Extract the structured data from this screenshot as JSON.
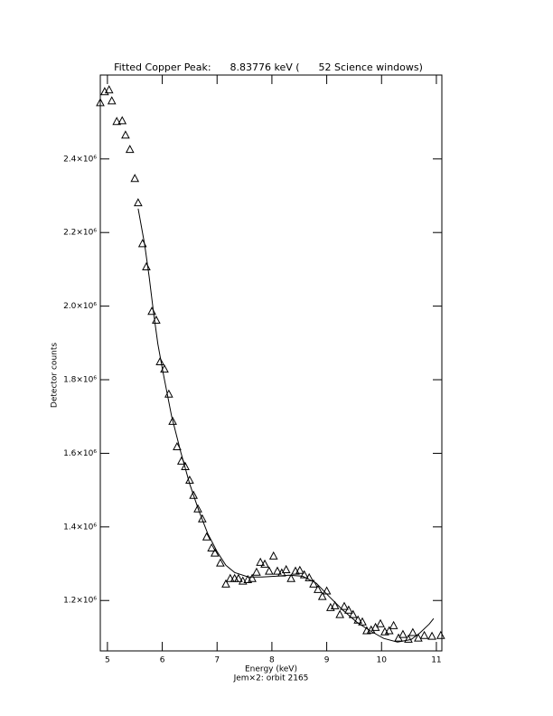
{
  "chart_data": {
    "type": "scatter",
    "title": "Fitted Copper Peak:      8.83776 keV (      52 Science windows)",
    "x_label": "Energy (keV)",
    "y_label": "Detector counts",
    "subtitle": "Jem×2: orbit 2165",
    "xlim": [
      4.87,
      11.1
    ],
    "ylim": [
      1063000,
      2628000
    ],
    "xticks": [
      5,
      6,
      7,
      8,
      9,
      10,
      11
    ],
    "yticks": [
      {
        "value": 1200000,
        "label": "1.2×10⁶"
      },
      {
        "value": 1400000,
        "label": "1.4×10⁶"
      },
      {
        "value": 1600000,
        "label": "1.6×10⁶"
      },
      {
        "value": 1800000,
        "label": "1.8×10⁶"
      },
      {
        "value": 2000000,
        "label": "2.0×10⁶"
      },
      {
        "value": 2200000,
        "label": "2.2×10⁶"
      },
      {
        "value": 2400000,
        "label": "2.4×10⁶"
      }
    ],
    "series": [
      {
        "marker": "triangle",
        "color": "#000000",
        "x": [
          4.87,
          4.95,
          5.03,
          5.08,
          5.17,
          5.27,
          5.33,
          5.41,
          5.5,
          5.56,
          5.64,
          5.71,
          5.81,
          5.89,
          5.96,
          6.04,
          6.12,
          6.19,
          6.27,
          6.35,
          6.42,
          6.5,
          6.57,
          6.65,
          6.73,
          6.81,
          6.9,
          6.96,
          7.06,
          7.16,
          7.24,
          7.32,
          7.39,
          7.47,
          7.56,
          7.64,
          7.72,
          7.79,
          7.87,
          7.95,
          8.03,
          8.1,
          8.18,
          8.26,
          8.35,
          8.43,
          8.51,
          8.59,
          8.68,
          8.76,
          8.84,
          8.92,
          9.0,
          9.07,
          9.15,
          9.24,
          9.32,
          9.4,
          9.48,
          9.57,
          9.65,
          9.73,
          9.81,
          9.89,
          9.98,
          10.06,
          10.14,
          10.22,
          10.31,
          10.39,
          10.49,
          10.57,
          10.67,
          10.78,
          10.92,
          11.08
        ],
        "values": [
          2552000,
          2582000,
          2587000,
          2557000,
          2501000,
          2503000,
          2464000,
          2425000,
          2346000,
          2280000,
          2169000,
          2106000,
          1985000,
          1961000,
          1848000,
          1828000,
          1760000,
          1686000,
          1617000,
          1578000,
          1563000,
          1526000,
          1485000,
          1448000,
          1421000,
          1372000,
          1342000,
          1328000,
          1301000,
          1244000,
          1259000,
          1259000,
          1259000,
          1252000,
          1256000,
          1259000,
          1276000,
          1303000,
          1298000,
          1279000,
          1320000,
          1279000,
          1274000,
          1283000,
          1259000,
          1279000,
          1281000,
          1269000,
          1261000,
          1244000,
          1229000,
          1210000,
          1225000,
          1180000,
          1185000,
          1161000,
          1183000,
          1173000,
          1161000,
          1146000,
          1141000,
          1117000,
          1119000,
          1126000,
          1136000,
          1114000,
          1117000,
          1131000,
          1097000,
          1107000,
          1094000,
          1112000,
          1097000,
          1104000,
          1102000,
          1104000
        ]
      },
      {
        "marker": "line",
        "color": "#000000",
        "x": [
          5.56,
          5.68,
          5.76,
          5.84,
          5.92,
          6.01,
          6.17,
          6.34,
          6.5,
          6.67,
          6.83,
          7.0,
          7.16,
          7.32,
          7.57,
          7.82,
          8.07,
          8.31,
          8.56,
          8.81,
          9.05,
          9.3,
          9.55,
          9.8,
          10.04,
          10.29,
          10.54,
          10.7,
          10.87,
          10.95
        ],
        "values": [
          2265000,
          2167000,
          2081000,
          1983000,
          1897000,
          1823000,
          1701000,
          1602000,
          1517000,
          1443000,
          1382000,
          1333000,
          1296000,
          1276000,
          1264000,
          1264000,
          1266000,
          1269000,
          1266000,
          1247000,
          1210000,
          1173000,
          1141000,
          1117000,
          1097000,
          1087000,
          1094000,
          1112000,
          1136000,
          1151000
        ]
      }
    ]
  }
}
